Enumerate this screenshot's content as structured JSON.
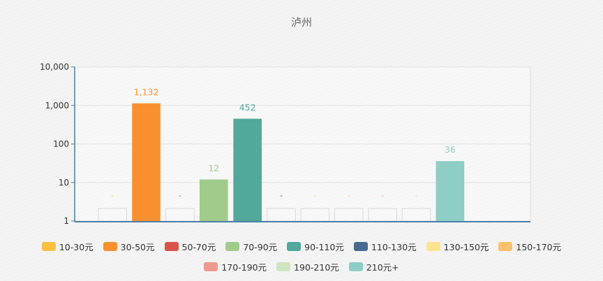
{
  "chart_data": {
    "type": "bar",
    "title": "泸州",
    "yscale": "log",
    "ylim": [
      1,
      10000
    ],
    "y_ticks": [
      {
        "value": 1,
        "label": "1"
      },
      {
        "value": 10,
        "label": "10"
      },
      {
        "value": 100,
        "label": "100"
      },
      {
        "value": 1000,
        "label": "1,000"
      },
      {
        "value": 10000,
        "label": "10,000"
      }
    ],
    "grid": true,
    "legend_position": "bottom",
    "series": [
      {
        "name": "10-30元",
        "color": "#fcc13f",
        "value": null,
        "label": "-"
      },
      {
        "name": "30-50元",
        "color": "#f89030",
        "value": 1132,
        "label": "1,132"
      },
      {
        "name": "50-70元",
        "color": "#d9534a",
        "value": null,
        "label": "-"
      },
      {
        "name": "70-90元",
        "color": "#9fcc8a",
        "value": 12,
        "label": "12"
      },
      {
        "name": "90-110元",
        "color": "#52a89a",
        "value": 452,
        "label": "452"
      },
      {
        "name": "110-130元",
        "color": "#476a8f",
        "value": null,
        "label": "-"
      },
      {
        "name": "130-150元",
        "color": "#fde38c",
        "value": null,
        "label": "-"
      },
      {
        "name": "150-170元",
        "color": "#fcbf6b",
        "value": null,
        "label": "-"
      },
      {
        "name": "170-190元",
        "color": "#ed9a8e",
        "value": null,
        "label": "-"
      },
      {
        "name": "190-210元",
        "color": "#cce6c0",
        "value": null,
        "label": "-"
      },
      {
        "name": "210元+",
        "color": "#8fcdc7",
        "value": 36,
        "label": "36"
      }
    ]
  }
}
